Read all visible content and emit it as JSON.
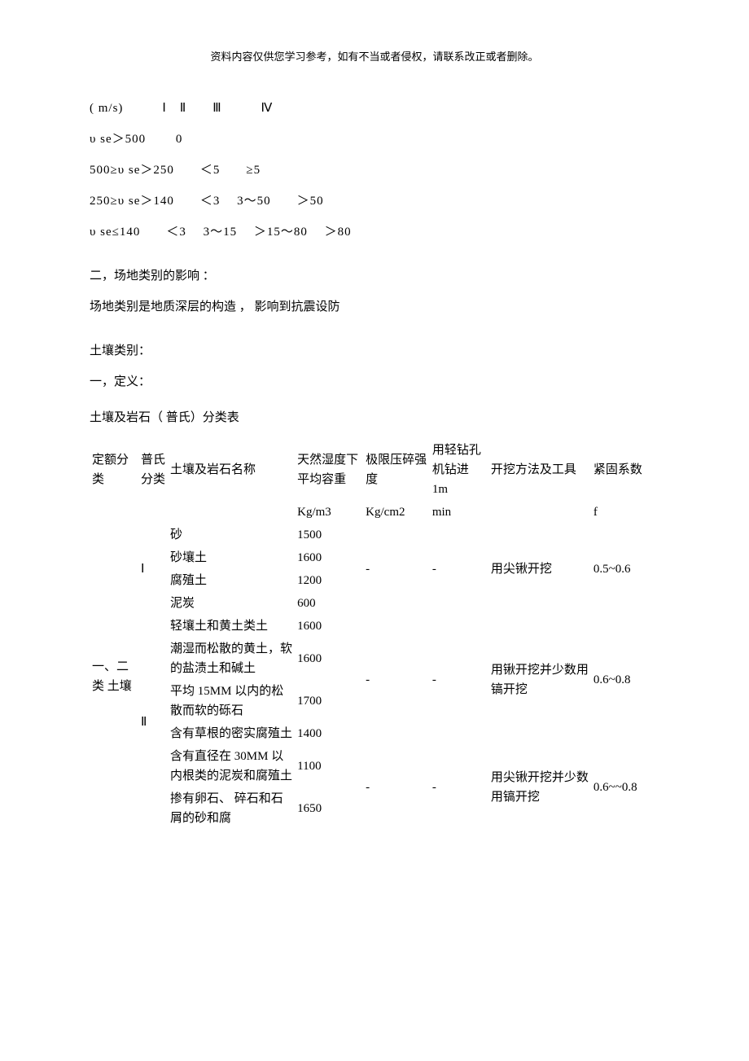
{
  "header": "资料内容仅供您学习参考，如有不当或者侵权，请联系改正或者删除。",
  "velocity": {
    "header_row": "( m/s)   Ⅰ Ⅱ  Ⅲ   Ⅳ",
    "row1": "υ se＞500   0",
    "row2": "500≥υ se＞250  ＜5  ≥5",
    "row3": "250≥υ se＞140  ＜3  3～50  ＞50",
    "row4": "υ se≤140  ＜3  3～15  ＞15～80  ＞80"
  },
  "site_heading": "二，场地类别的影响 ：",
  "site_text": "场地类别是地质深层的构造 ， 影响到抗震设防",
  "soil_heading": "土壤类别：",
  "soil_def": "一，定义：",
  "table_title": "土壤及岩石（ 普氏）分类表",
  "th": {
    "dingfen": "定额分类",
    "pushi": "普氏分类",
    "name": "土壤及岩石名称",
    "rongzhong": "天然湿度下平均容重",
    "qiangdu": "极限压碎强度",
    "zuankong": "用轻钻孔机钻进 1m",
    "fangfa": "开挖方法及工具",
    "xishu": "紧固系数",
    "rongzhong_unit": "Kg/m3",
    "qiangdu_unit": "Kg/cm2",
    "zuankong_unit": "min",
    "xishu_unit": "f"
  },
  "group": {
    "dingfen_1": "一、二类 土壤",
    "pushi_I": "Ⅰ",
    "pushi_II": "Ⅱ"
  },
  "rows": {
    "r1_name": "砂",
    "r1_w": "1500",
    "r2_name": "砂壤土",
    "r2_w": "1600",
    "r3_name": "腐殖土",
    "r3_w": "1200",
    "r4_name": "泥炭",
    "r4_w": "600",
    "r5_name": "轻壤土和黄土类土",
    "r5_w": "1600",
    "r6_name": "潮湿而松散的黄土，软的盐渍土和碱土",
    "r6_w": "1600",
    "r7_name": "平均 15MM 以内的松散而软的砾石",
    "r7_w": "1700",
    "r8_name": "含有草根的密实腐殖土",
    "r8_w": "1400",
    "r9_name": "含有直径在 30MM 以内根类的泥炭和腐殖土",
    "r9_w": "1100",
    "r10_name": "掺有卵石、 碎石和石屑的砂和腐",
    "r10_w": "1650"
  },
  "dash": "-",
  "fangfa1": "用尖锹开挖",
  "fangfa2": "用锹开挖并少数用镐开挖",
  "fangfa3": "用尖锹开挖并少数用镐开挖",
  "xishu1": "0.5~0.6",
  "xishu2": "0.6~0.8",
  "xishu3": "0.6~~0.8"
}
